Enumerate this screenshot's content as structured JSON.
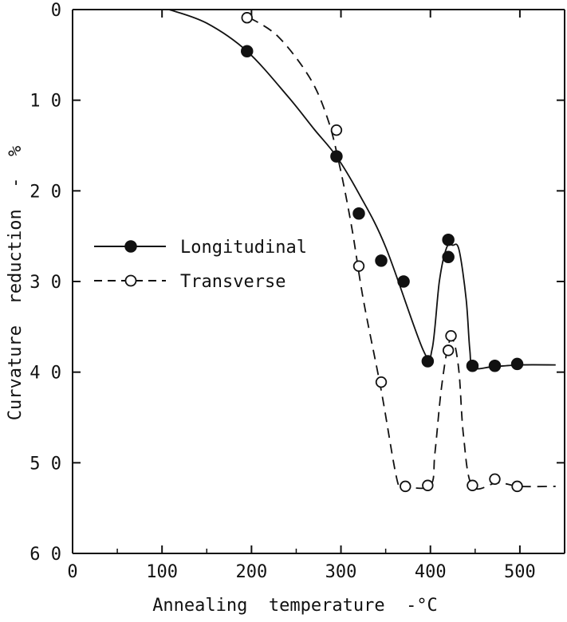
{
  "chart_data": {
    "type": "scatter",
    "title": "",
    "xlabel": "Annealing  temperature  -°C",
    "ylabel": "Curvature  reduction  -  %",
    "xlim": [
      0,
      550
    ],
    "ylim": [
      0,
      60
    ],
    "y_inverted": true,
    "xticks": [
      0,
      100,
      200,
      300,
      400,
      500
    ],
    "xtick_labels": [
      "0",
      "100",
      "200",
      "300",
      "400",
      "500"
    ],
    "yticks": [
      0,
      10,
      20,
      30,
      40,
      50,
      60
    ],
    "ytick_labels": [
      "0",
      "1 0",
      "2 0",
      "3 0",
      "4 0",
      "5 0",
      "6 0"
    ],
    "grid": false,
    "legend_position": "middle-left",
    "series": [
      {
        "name": "Longitudinal",
        "marker": "filled-circle",
        "line_style": "solid",
        "color": "#111111",
        "x": [
          195,
          295,
          320,
          345,
          370,
          397,
          420,
          420,
          447,
          472,
          497
        ],
        "y": [
          4.6,
          16.2,
          22.5,
          27.7,
          30.0,
          38.8,
          25.4,
          27.3,
          39.3,
          39.3,
          39.1
        ],
        "curve_x": [
          108,
          150,
          195,
          240,
          270,
          295,
          320,
          350,
          392,
          402,
          410,
          418,
          425,
          432,
          440,
          444,
          448,
          470,
          500,
          540
        ],
        "curve_y": [
          0,
          1.5,
          4.6,
          9.5,
          13.2,
          16.2,
          20.3,
          26.2,
          37.6,
          37.4,
          30,
          26.3,
          26.0,
          26.5,
          32,
          37.5,
          39.5,
          39.4,
          39.2,
          39.2
        ]
      },
      {
        "name": "Transverse",
        "marker": "open-circle",
        "line_style": "dashed",
        "color": "#111111",
        "x": [
          195,
          295,
          320,
          345,
          372,
          397,
          420,
          423,
          447,
          472,
          497
        ],
        "y": [
          0.9,
          13.3,
          28.3,
          41.1,
          52.6,
          52.5,
          37.6,
          36.0,
          52.5,
          51.8,
          52.6
        ],
        "curve_x": [
          198,
          230,
          265,
          285,
          298,
          312,
          325,
          345,
          363,
          372,
          400,
          405,
          412,
          420,
          426,
          432,
          437,
          447,
          475,
          500,
          540
        ],
        "curve_y": [
          0.9,
          3.0,
          7.5,
          12.0,
          17.0,
          24.0,
          32.0,
          42.0,
          52.0,
          52.6,
          52.5,
          49.0,
          42.0,
          37.0,
          36.6,
          40.0,
          47.0,
          52.6,
          52.2,
          52.6,
          52.6
        ]
      }
    ]
  }
}
